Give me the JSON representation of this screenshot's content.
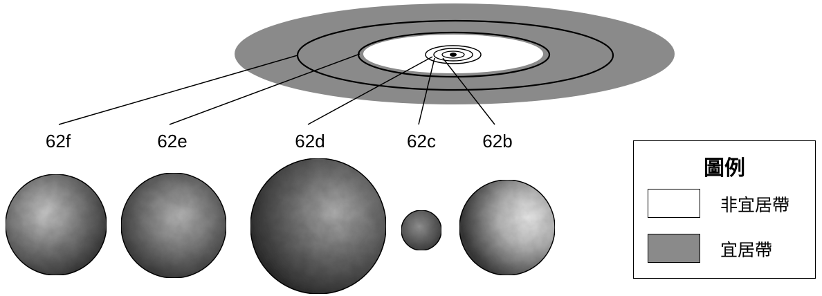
{
  "colors": {
    "habitable_zone": "#8a8a8a",
    "non_habitable_zone": "#ffffff",
    "orbit_line": "#000000"
  },
  "planets": [
    {
      "label": "62f"
    },
    {
      "label": "62e"
    },
    {
      "label": "62d"
    },
    {
      "label": "62c"
    },
    {
      "label": "62b"
    }
  ],
  "legend": {
    "title": "圖例",
    "items": [
      {
        "label": "非宜居帶",
        "color": "#ffffff"
      },
      {
        "label": "宜居帶",
        "color": "#8a8a8a"
      }
    ]
  }
}
